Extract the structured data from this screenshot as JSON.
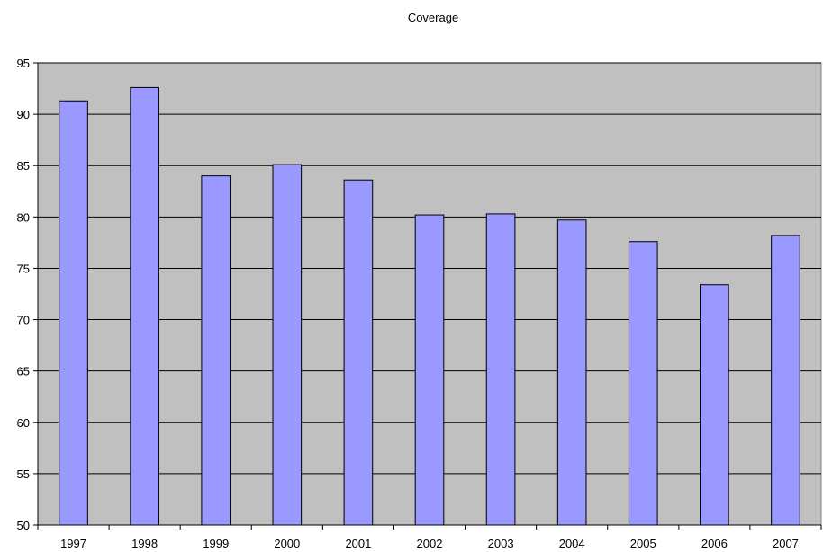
{
  "chart_data": {
    "type": "bar",
    "title": "Coverage",
    "xlabel": "",
    "ylabel": "",
    "categories": [
      "1997",
      "1998",
      "1999",
      "2000",
      "2001",
      "2002",
      "2003",
      "2004",
      "2005",
      "2006",
      "2007"
    ],
    "values": [
      91.3,
      92.6,
      84.0,
      85.1,
      83.6,
      80.2,
      80.3,
      79.7,
      77.6,
      73.4,
      78.2
    ],
    "ylim": [
      50,
      95
    ],
    "y_ticks": [
      50,
      55,
      60,
      65,
      70,
      75,
      80,
      85,
      90,
      95
    ],
    "grid": true,
    "legend": "none",
    "colors": {
      "bar_fill": "#9999ff",
      "bar_stroke": "#000000",
      "plot_background": "#c0c0c0",
      "gridline": "#000000"
    }
  }
}
